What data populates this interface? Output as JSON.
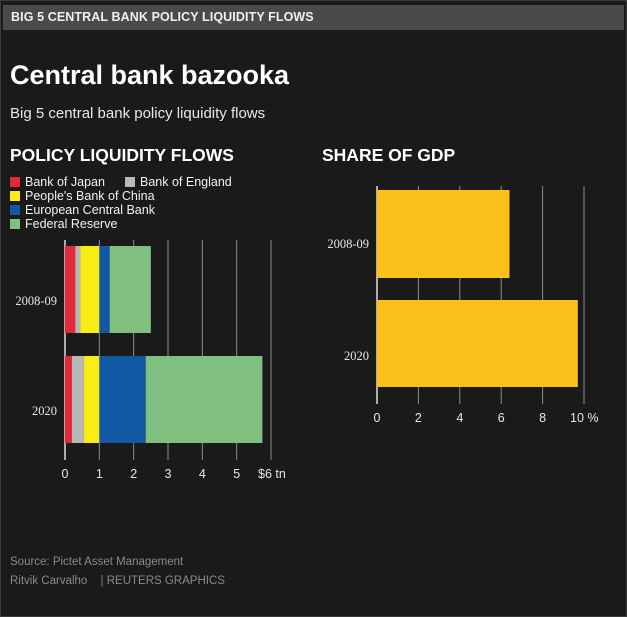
{
  "header": {
    "bar_label": "BIG 5 CENTRAL BANK POLICY LIQUIDITY FLOWS",
    "title": "Central bank bazooka",
    "subtitle": "Big 5 central bank policy liquidity flows"
  },
  "colors": {
    "background": "#1b1a1b",
    "bank_of_japan": "#e3283a",
    "bank_of_england": "#b8b8b8",
    "peoples_bank_of_china": "#f8ed12",
    "european_central_bank": "#1257a3",
    "federal_reserve": "#7fbf7f",
    "gdp_bar": "#fbc11a"
  },
  "chart_data": [
    {
      "type": "bar",
      "orientation": "horizontal",
      "stacked": true,
      "title": "POLICY LIQUIDITY FLOWS",
      "categories": [
        "2008-09",
        "2020"
      ],
      "series": [
        {
          "name": "Bank of Japan",
          "values": [
            0.3,
            0.2
          ]
        },
        {
          "name": "Bank of England",
          "values": [
            0.15,
            0.35
          ]
        },
        {
          "name": "People's Bank of China",
          "values": [
            0.55,
            0.45
          ]
        },
        {
          "name": "European Central Bank",
          "values": [
            0.3,
            1.35
          ]
        },
        {
          "name": "Federal Reserve",
          "values": [
            1.2,
            3.4
          ]
        }
      ],
      "xlim": [
        0,
        6
      ],
      "xticks": [
        "0",
        "1",
        "2",
        "3",
        "4",
        "5",
        "$6 tn"
      ],
      "grid": true,
      "legend_position": "top-left"
    },
    {
      "type": "bar",
      "orientation": "horizontal",
      "title": "SHARE OF GDP",
      "categories": [
        "2008-09",
        "2020"
      ],
      "values": [
        6.4,
        9.7
      ],
      "xlim": [
        0,
        10
      ],
      "xticks": [
        "0",
        "2",
        "4",
        "6",
        "8",
        "10 %"
      ],
      "grid": true
    }
  ],
  "footer": {
    "source": "Source: Pictet Asset Management",
    "credit": "Ritvik Carvalho",
    "agency": "| REUTERS GRAPHICS"
  }
}
